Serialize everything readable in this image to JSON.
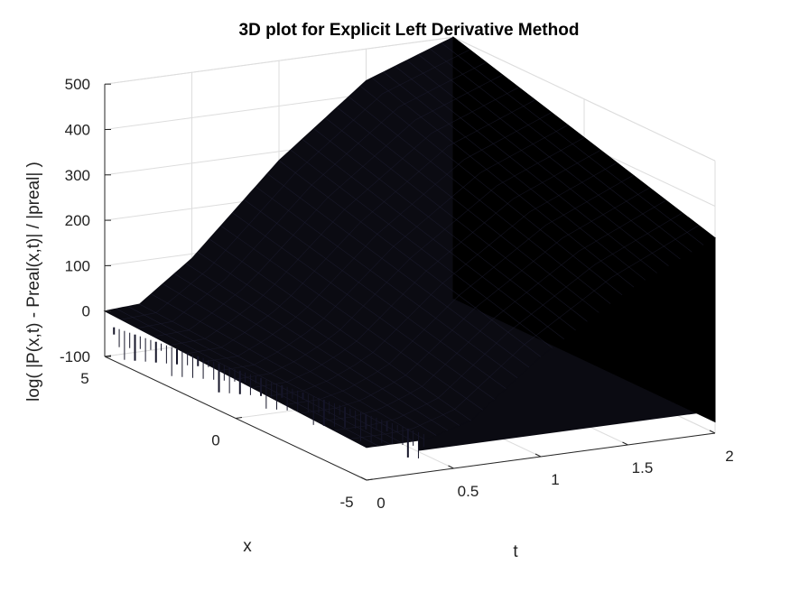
{
  "chart_data": {
    "type": "surface3d",
    "title": "3D plot for Explicit Left Derivative Method",
    "xlabel": "t",
    "ylabel": "x",
    "zlabel": "log( |P(x,t) - Preal(x,t)| / |preal| )",
    "xlim": [
      0,
      2
    ],
    "ylim": [
      -5,
      5
    ],
    "zlim": [
      -100,
      500
    ],
    "x_ticks": [
      0,
      0.5,
      1,
      1.5,
      2
    ],
    "x_tick_labels": [
      "0",
      "0.5",
      "1",
      "1.5",
      "2"
    ],
    "y_ticks": [
      -5,
      0,
      5
    ],
    "y_tick_labels": [
      "-5",
      "0",
      "5"
    ],
    "z_ticks": [
      -100,
      0,
      100,
      200,
      300,
      400,
      500
    ],
    "z_tick_labels": [
      "-100",
      "0",
      "100",
      "200",
      "300",
      "400",
      "500"
    ],
    "grid": true,
    "surface_color": "#0b0b12",
    "edge_color": "#202036",
    "surface": {
      "t_at_edge_x_plus5": [
        0,
        0.2,
        0.5,
        1,
        1.5,
        2
      ],
      "error_at_edge_x_plus5": [
        0,
        5,
        90,
        280,
        430,
        500
      ],
      "t_at_edge_x_minus5": [
        0,
        0.35,
        0.6,
        1,
        1.5,
        2
      ],
      "error_at_edge_x_minus5": [
        -28,
        -28,
        0,
        120,
        240,
        330
      ],
      "left_floor_region": {
        "t_range": [
          0,
          0.35
        ],
        "value": -28
      }
    }
  },
  "colors": {
    "background": "#ffffff",
    "axis": "#262626",
    "grid": "#dddddd",
    "surface": "#0b0b12"
  }
}
